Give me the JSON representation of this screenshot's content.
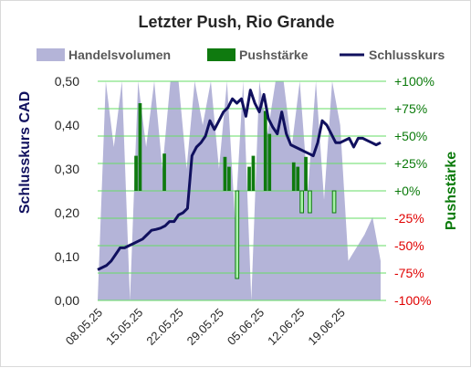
{
  "chart_data": {
    "type": "combo",
    "title": "Letzter Push, Rio Grande",
    "ylabel_left": "Schlusskurs CAD",
    "ylabel_right": "Pushstärke",
    "ylim_left": [
      0,
      0.5
    ],
    "ylim_right": [
      -100,
      100
    ],
    "left_ticks": [
      "0,00",
      "0,10",
      "0,20",
      "0,30",
      "0,40",
      "0,50"
    ],
    "right_ticks": [
      "+100%",
      "+75%",
      "+50%",
      "+25%",
      "+0%",
      "-25%",
      "-50%",
      "-75%",
      "-100%"
    ],
    "x_tick_labels": [
      "08.05.25",
      "15.05.25",
      "22.05.25",
      "29.05.25",
      "05.06.25",
      "12.06.25",
      "19.06.25"
    ],
    "x_tick_index": [
      0,
      5,
      10,
      15,
      20,
      25,
      30
    ],
    "grid": "horizontal",
    "legend_position": "top",
    "colors": {
      "volume": "#b4b4d8",
      "push_positive": "#0f7a0f",
      "push_negative": "#a6f2a6",
      "close": "#10105e",
      "grid": "#66dd66",
      "right_positive": "#0a7a0a",
      "right_negative": "#e00000",
      "right_label": "#0a7a0a",
      "left_label": "#10105e"
    },
    "series": [
      {
        "name": "Handelsvolumen",
        "kind": "area",
        "values": [
          0.0,
          0.5,
          0.35,
          0.5,
          0.0,
          0.5,
          0.35,
          0.5,
          0.3,
          0.5,
          0.5,
          0.3,
          0.5,
          0.4,
          0.5,
          0.3,
          0.5,
          0.18,
          0.5,
          0.0,
          0.5,
          0.38,
          0.5,
          0.5,
          0.35,
          0.5,
          0.25,
          0.5,
          0.23,
          0.5,
          0.4,
          0.09,
          0.12,
          0.15,
          0.19,
          0.09
        ]
      },
      {
        "name": "Pushstärke",
        "kind": "bar",
        "values": [
          0,
          0,
          0,
          0,
          0,
          0,
          0,
          0,
          0,
          32,
          80,
          0,
          0,
          0,
          0,
          0,
          34,
          0,
          0,
          0,
          0,
          0,
          0,
          0,
          0,
          0,
          0,
          0,
          0,
          0,
          0,
          31,
          22,
          0,
          -80,
          0,
          0,
          22,
          32,
          0,
          0,
          73,
          52,
          0,
          0,
          0,
          0,
          0,
          26,
          22,
          -20,
          31,
          -20,
          0,
          0,
          0,
          0,
          0,
          -20,
          0,
          0,
          0,
          0,
          0,
          0,
          0,
          0,
          0,
          0,
          0
        ]
      },
      {
        "name": "Schlusskurs",
        "kind": "line",
        "values": [
          0.07,
          0.075,
          0.08,
          0.09,
          0.105,
          0.12,
          0.12,
          0.125,
          0.13,
          0.135,
          0.14,
          0.15,
          0.16,
          0.162,
          0.165,
          0.17,
          0.18,
          0.18,
          0.195,
          0.2,
          0.21,
          0.33,
          0.35,
          0.36,
          0.375,
          0.41,
          0.39,
          0.41,
          0.43,
          0.44,
          0.46,
          0.45,
          0.46,
          0.42,
          0.48,
          0.45,
          0.43,
          0.47,
          0.415,
          0.395,
          0.38,
          0.43,
          0.38,
          0.355,
          0.35,
          0.345,
          0.34,
          0.335,
          0.33,
          0.36,
          0.41,
          0.4,
          0.38,
          0.36,
          0.36,
          0.365,
          0.37,
          0.35,
          0.37,
          0.37,
          0.365,
          0.36,
          0.355,
          0.36
        ]
      }
    ]
  }
}
